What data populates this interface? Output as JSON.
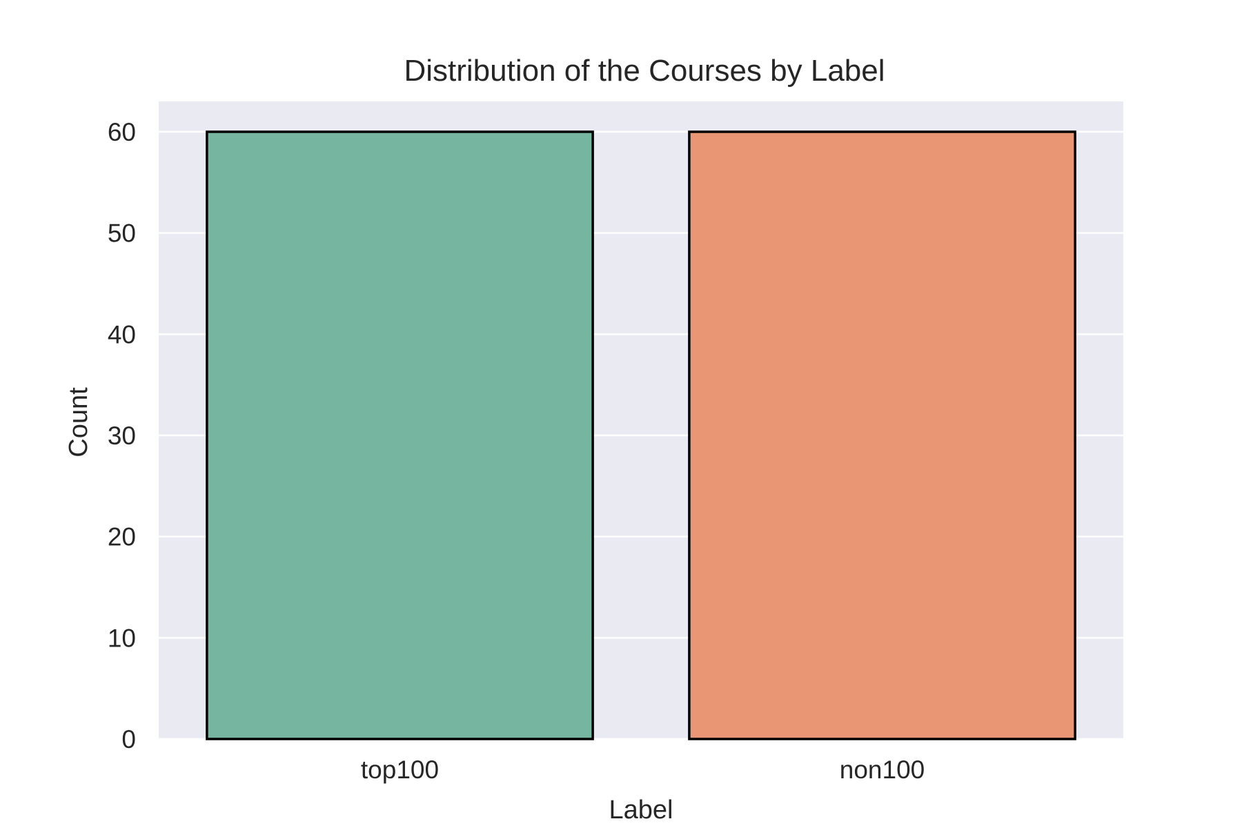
{
  "chart_data": {
    "type": "bar",
    "title": "Distribution of the Courses by Label",
    "xlabel": "Label",
    "ylabel": "Count",
    "categories": [
      "top100",
      "non100"
    ],
    "values": [
      60,
      60
    ],
    "ylim": [
      0,
      63
    ],
    "yticks": [
      0,
      10,
      20,
      30,
      40,
      50,
      60
    ],
    "grid": true,
    "colors": {
      "plot_background": "#eaeaf2",
      "grid": "#ffffff",
      "bar_edge": "#000000",
      "bars": [
        "#76b5a0",
        "#e99674"
      ]
    }
  }
}
